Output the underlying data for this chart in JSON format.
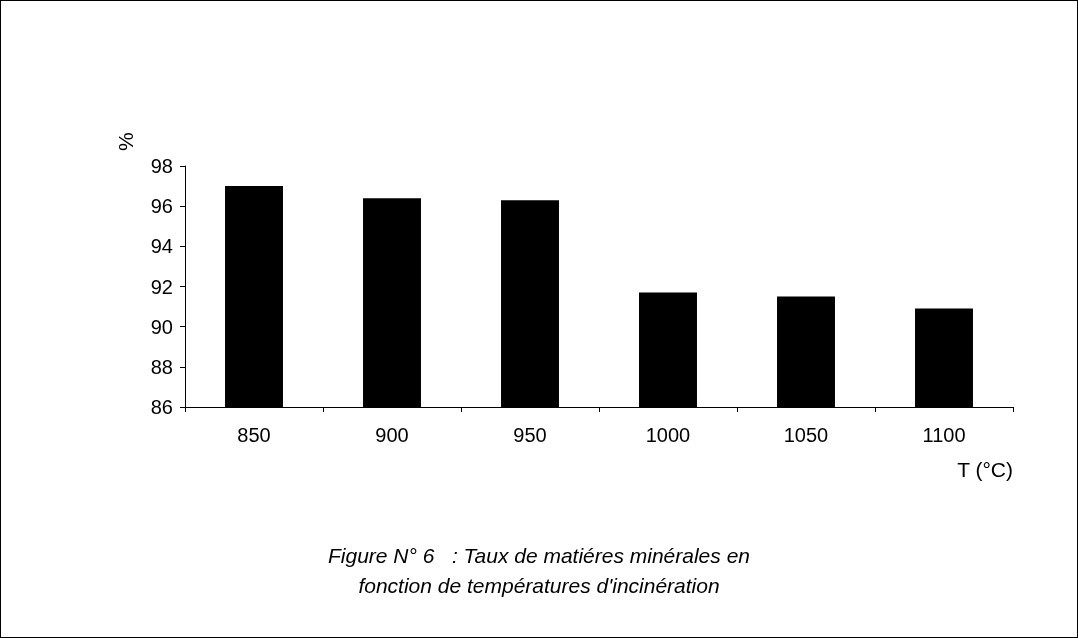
{
  "chart_data": {
    "type": "bar",
    "title": "Figure N° 6   : Taux de matiéres minérales en\nfonction de températures d'incinération",
    "xlabel": "T (°C)",
    "ylabel": "%",
    "categories": [
      "850",
      "900",
      "950",
      "1000",
      "1050",
      "1100"
    ],
    "values": [
      97.0,
      96.4,
      96.3,
      91.7,
      91.5,
      90.9
    ],
    "color": "#000000",
    "ylim": [
      86,
      98
    ],
    "yticks": [
      86,
      88,
      90,
      92,
      94,
      96,
      98
    ],
    "grid": false
  }
}
